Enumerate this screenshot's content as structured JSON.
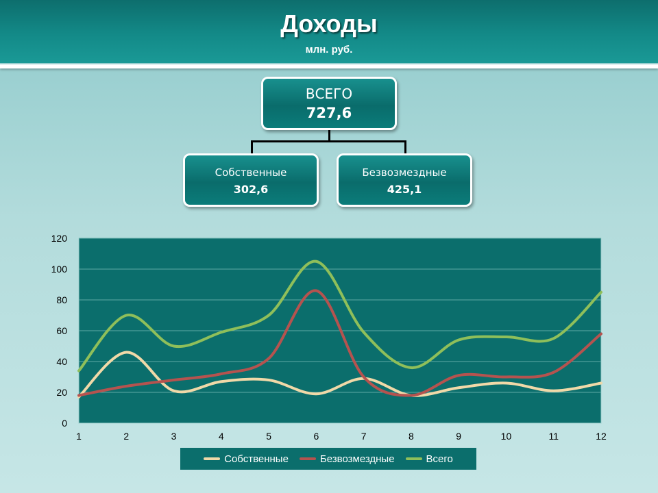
{
  "header": {
    "title": "Доходы",
    "subtitle": "млн. руб."
  },
  "tree": {
    "total": {
      "label": "ВСЕГО",
      "value": "727,6"
    },
    "own": {
      "label": "Собственные",
      "value": "302,6"
    },
    "grants": {
      "label": "Безвозмездные",
      "value": "425,1"
    }
  },
  "colors": {
    "plot_bg": "#0b6e6c",
    "own": "#f0d9a8",
    "grants": "#b5534f",
    "total": "#8fbf5a"
  },
  "chart_data": {
    "type": "line",
    "x": [
      1,
      2,
      3,
      4,
      5,
      6,
      7,
      8,
      9,
      10,
      11,
      12
    ],
    "categories": [
      "1",
      "2",
      "3",
      "4",
      "5",
      "6",
      "7",
      "8",
      "9",
      "10",
      "11",
      "12"
    ],
    "ylim": [
      0,
      120
    ],
    "yticks": [
      "0",
      "20",
      "40",
      "60",
      "80",
      "100",
      "120"
    ],
    "grid": true,
    "legend_position": "bottom",
    "series": [
      {
        "name": "Собственные",
        "color": "#f0d9a8",
        "values": [
          17,
          46,
          21,
          27,
          28,
          19,
          29,
          18,
          23,
          26,
          21,
          26
        ]
      },
      {
        "name": "Безвозмездные",
        "color": "#b5534f",
        "values": [
          18,
          24,
          28,
          32,
          42,
          86,
          30,
          18,
          31,
          30,
          33,
          58
        ]
      },
      {
        "name": "Всего",
        "color": "#8fbf5a",
        "values": [
          34,
          70,
          50,
          59,
          70,
          105,
          59,
          36,
          54,
          56,
          55,
          85
        ]
      }
    ]
  }
}
